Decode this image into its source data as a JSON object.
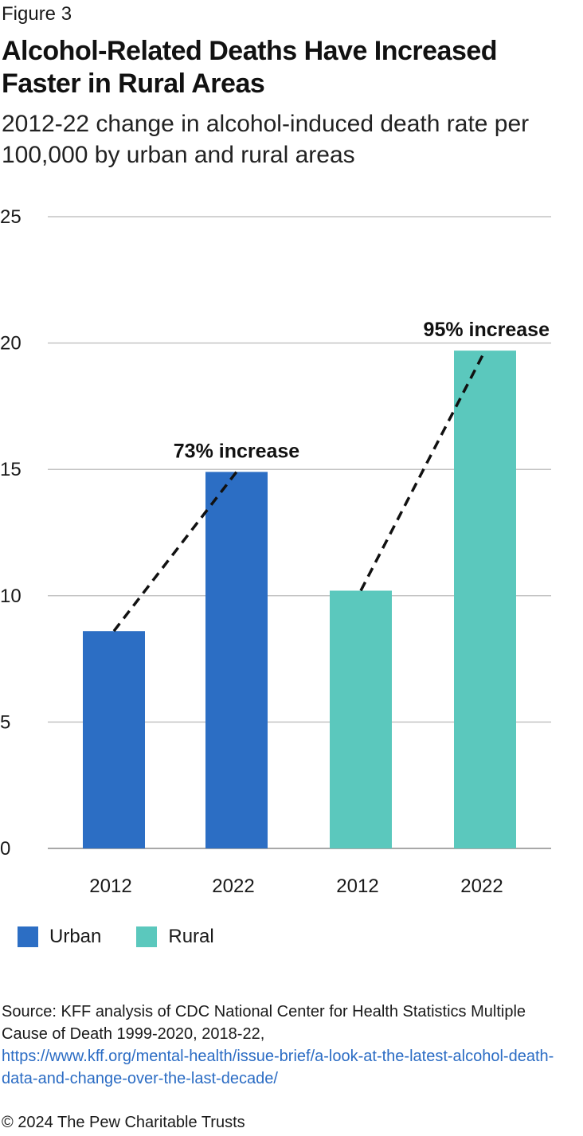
{
  "figure_label": "Figure 3",
  "title": "Alcohol-Related Deaths Have Increased Faster in Rural Areas",
  "subtitle": "2012-22 change in alcohol-induced death rate per 100,000 by urban and rural areas",
  "chart_data": {
    "type": "bar",
    "categories": [
      "2012",
      "2022",
      "2012",
      "2022"
    ],
    "values": [
      8.6,
      14.9,
      10.2,
      19.7
    ],
    "groups": [
      "Urban",
      "Urban",
      "Rural",
      "Rural"
    ],
    "ylim": [
      0,
      25
    ],
    "yticks": [
      0,
      5,
      10,
      15,
      20,
      25
    ],
    "grid": true,
    "colors": {
      "Urban": "#2c6ec4",
      "Rural": "#5bc8bd"
    },
    "annotations": [
      {
        "text": "73% increase",
        "from_index": 0,
        "to_index": 1
      },
      {
        "text": "95% increase",
        "from_index": 2,
        "to_index": 3
      }
    ]
  },
  "legend": [
    {
      "label": "Urban",
      "color": "#2c6ec4"
    },
    {
      "label": "Rural",
      "color": "#5bc8bd"
    }
  ],
  "source": {
    "text": "Source: KFF analysis of CDC National Center for Health Statistics Multiple Cause of Death 1999-2020, 2018-22,",
    "link": "https://www.kff.org/mental-health/issue-brief/a-look-at-the-latest-alcohol-death-data-and-change-over-the-last-decade/"
  },
  "copyright": "© 2024 The Pew Charitable Trusts"
}
